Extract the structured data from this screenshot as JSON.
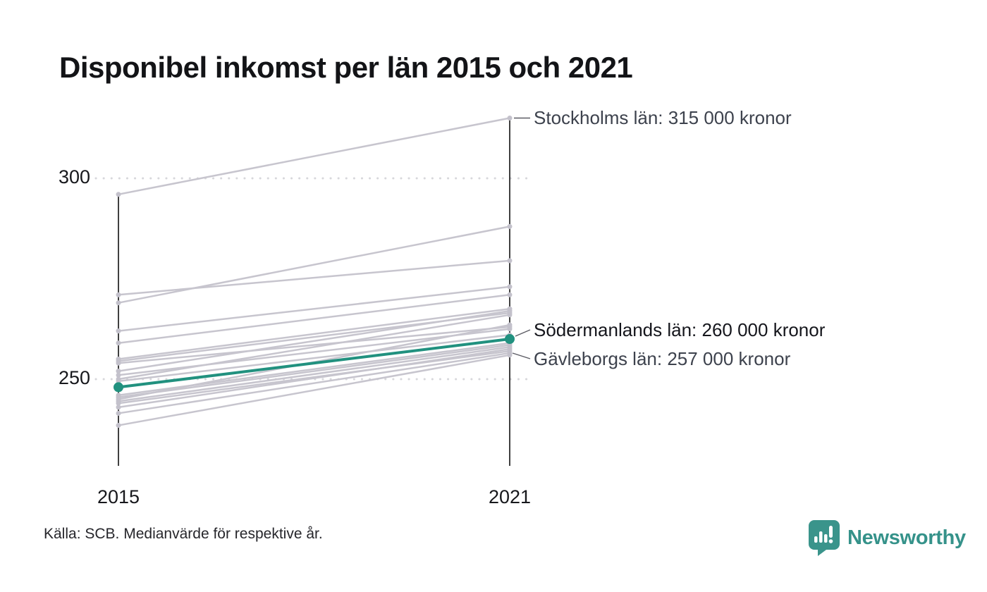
{
  "title": "Disponibel inkomst per län 2015 och 2021",
  "source_note": "Källa: SCB. Medianvärde för respektive år.",
  "branding": {
    "name": "Newsworthy",
    "accent_color": "#35928a",
    "logo_icon": "speech-bubble-bar-chart"
  },
  "colors": {
    "highlight_line": "#21917f",
    "background_line": "#c7c5ce",
    "axis": "#000000",
    "gridline": "#d7d7db",
    "label_dark": "#15161c",
    "label_gray": "#3d424d"
  },
  "chart_data": {
    "type": "line",
    "subtype": "slope-chart",
    "title": "Disponibel inkomst per län 2015 och 2021",
    "unit": "tusen kronor (medianvärde)",
    "x": [
      2015,
      2021
    ],
    "xticks": [
      {
        "label": "2015"
      },
      {
        "label": "2021"
      }
    ],
    "yticks": [
      {
        "label": "300",
        "value": 300
      },
      {
        "label": "250",
        "value": 250
      }
    ],
    "ylim": [
      230,
      320
    ],
    "grid": "horizontal dotted at yticks",
    "legend": "none",
    "series": [
      {
        "name": "Stockholms län",
        "values": [
          296,
          315
        ],
        "highlight": false
      },
      {
        "name": "Södermanlands län",
        "values": [
          248,
          260
        ],
        "highlight": true
      },
      {
        "name": "Gävleborgs län",
        "values": [
          244,
          257
        ],
        "highlight": false
      },
      {
        "name": "",
        "values": [
          271,
          279.5
        ],
        "highlight": false
      },
      {
        "name": "",
        "values": [
          269,
          288
        ],
        "highlight": false
      },
      {
        "name": "",
        "values": [
          262,
          273
        ],
        "highlight": false
      },
      {
        "name": "",
        "values": [
          259,
          271
        ],
        "highlight": false
      },
      {
        "name": "",
        "values": [
          255,
          267.5
        ],
        "highlight": false
      },
      {
        "name": "",
        "values": [
          254.5,
          266.5
        ],
        "highlight": false
      },
      {
        "name": "",
        "values": [
          254,
          263
        ],
        "highlight": false
      },
      {
        "name": "",
        "values": [
          252,
          267
        ],
        "highlight": false
      },
      {
        "name": "",
        "values": [
          251,
          262.5
        ],
        "highlight": false
      },
      {
        "name": "",
        "values": [
          250,
          266
        ],
        "highlight": false
      },
      {
        "name": "",
        "values": [
          249.5,
          261
        ],
        "highlight": false
      },
      {
        "name": "",
        "values": [
          246,
          259
        ],
        "highlight": false
      },
      {
        "name": "",
        "values": [
          245.5,
          258.5
        ],
        "highlight": false
      },
      {
        "name": "",
        "values": [
          245,
          263.5
        ],
        "highlight": false
      },
      {
        "name": "",
        "values": [
          244.5,
          258
        ],
        "highlight": false
      },
      {
        "name": "",
        "values": [
          243,
          257.5
        ],
        "highlight": false
      },
      {
        "name": "",
        "values": [
          241.5,
          256.5
        ],
        "highlight": false
      },
      {
        "name": "",
        "values": [
          238.5,
          256
        ],
        "highlight": false
      }
    ],
    "annotations": [
      {
        "series": "Stockholms län",
        "text": "Stockholms län: 315 000 kronor",
        "emphasis": false
      },
      {
        "series": "Södermanlands län",
        "text": "Södermanlands län: 260 000 kronor",
        "emphasis": true
      },
      {
        "series": "Gävleborgs län",
        "text": "Gävleborgs län: 257 000 kronor",
        "emphasis": false
      }
    ]
  }
}
